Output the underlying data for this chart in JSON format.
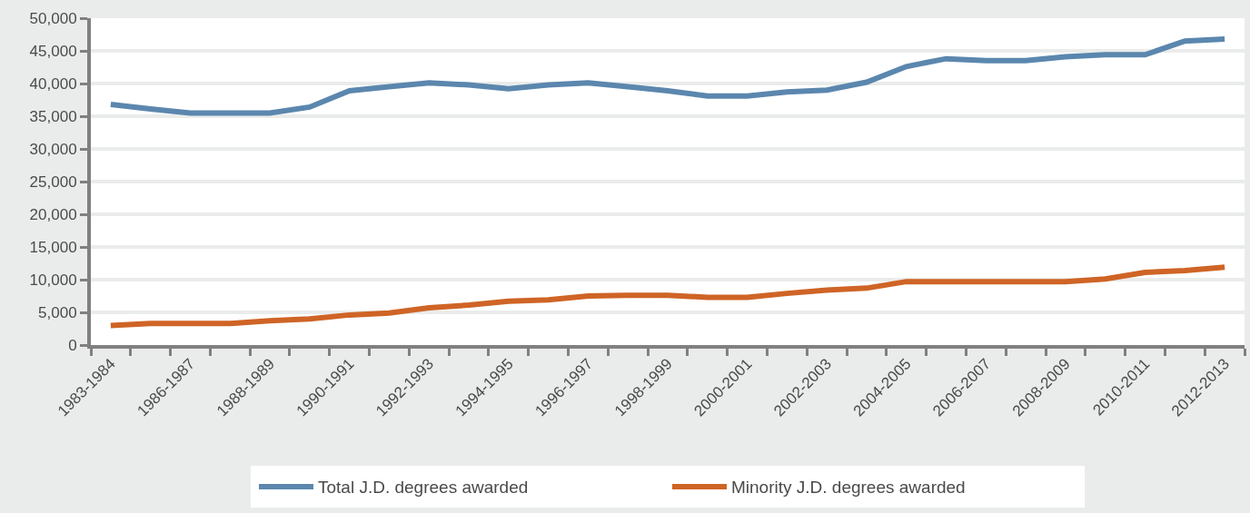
{
  "chart_data": {
    "type": "line",
    "categories": [
      "1983-1984",
      null,
      "1986-1987",
      null,
      "1988-1989",
      null,
      "1990-1991",
      null,
      "1992-1993",
      null,
      "1994-1995",
      null,
      "1996-1997",
      null,
      "1998-1999",
      null,
      "2000-2001",
      null,
      "2002-2003",
      null,
      "2004-2005",
      null,
      "2006-2007",
      null,
      "2008-2009",
      null,
      "2010-2011",
      null,
      "2012-2013"
    ],
    "series": [
      {
        "name": "Total J.D. degrees awarded",
        "color": "#5b87ae",
        "values": [
          36800,
          36100,
          35500,
          35500,
          35500,
          36400,
          38900,
          39500,
          40100,
          39800,
          39200,
          39800,
          40100,
          39500,
          38900,
          38100,
          38100,
          38700,
          39000,
          40200,
          42600,
          43800,
          43500,
          43500,
          44100,
          44400,
          44400,
          46500,
          46800
        ]
      },
      {
        "name": "Minority J.D. degrees awarded",
        "color": "#cf6426",
        "values": [
          3000,
          3300,
          3300,
          3300,
          3700,
          4000,
          4600,
          4900,
          5700,
          6100,
          6700,
          6900,
          7500,
          7600,
          7600,
          7300,
          7300,
          7900,
          8400,
          8700,
          9700,
          9700,
          9700,
          9700,
          9700,
          10100,
          11100,
          11400,
          11900
        ]
      }
    ],
    "ylim": [
      0,
      50000
    ],
    "yticks": [
      {
        "value": 0,
        "label": "0"
      },
      {
        "value": 5000,
        "label": "5,000"
      },
      {
        "value": 10000,
        "label": "10,000"
      },
      {
        "value": 15000,
        "label": "15,000"
      },
      {
        "value": 20000,
        "label": "20,000"
      },
      {
        "value": 25000,
        "label": "25,000"
      },
      {
        "value": 30000,
        "label": "30,000"
      },
      {
        "value": 35000,
        "label": "35,000"
      },
      {
        "value": 40000,
        "label": "40,000"
      },
      {
        "value": 45000,
        "label": "45,000"
      },
      {
        "value": 50000,
        "label": "50,000"
      }
    ],
    "grid": "y",
    "legend": "bottom",
    "marker": "none",
    "line_style": "solid"
  }
}
